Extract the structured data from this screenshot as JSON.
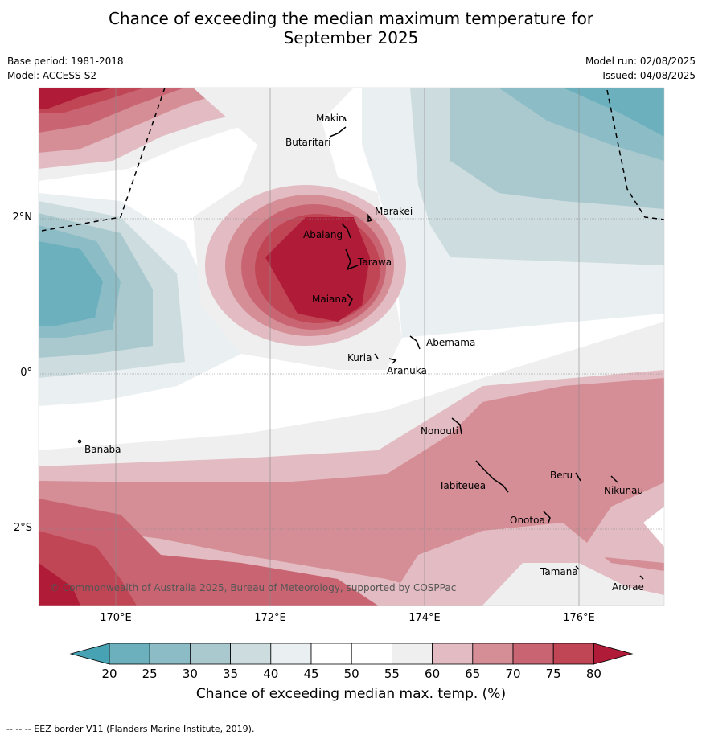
{
  "title_line1": "Chance of exceeding the median maximum temperature for",
  "title_line2": "September 2025",
  "base_period": "Base period: 1981-2018",
  "model": "Model: ACCESS-S2",
  "model_run": "Model run: 02/08/2025",
  "issued": "Issued: 04/08/2025",
  "copyright": "© Commonwealth of Australia 2025, Bureau of Meteorology, supported by COSPPac",
  "footer": "--  --  -- EEZ border V11 (Flanders Marine Institute, 2019).",
  "axes": {
    "lat_ticks": [
      "2°N",
      "0°",
      "2°S"
    ],
    "lon_ticks": [
      "170°E",
      "172°E",
      "174°E",
      "176°E"
    ]
  },
  "colorbar": {
    "label": "Chance of exceeding median max. temp. (%)",
    "ticks": [
      "20",
      "25",
      "30",
      "35",
      "40",
      "45",
      "50",
      "55",
      "60",
      "65",
      "70",
      "75",
      "80"
    ],
    "colors": [
      "#47a3b3",
      "#6bb0bc",
      "#8cbcc6",
      "#a9c9ce",
      "#cddcdf",
      "#eaf0f2",
      "#ffffff",
      "#ffffff",
      "#efefef",
      "#e2bcc2",
      "#d58d96",
      "#c96572",
      "#c04655",
      "#b01c37"
    ]
  },
  "places": [
    {
      "name": "Makin"
    },
    {
      "name": "Butaritari"
    },
    {
      "name": "Marakei"
    },
    {
      "name": "Abaiang"
    },
    {
      "name": "Tarawa"
    },
    {
      "name": "Maiana"
    },
    {
      "name": "Abemama"
    },
    {
      "name": "Kuria"
    },
    {
      "name": "Aranuka"
    },
    {
      "name": "Nonouti"
    },
    {
      "name": "Banaba"
    },
    {
      "name": "Beru"
    },
    {
      "name": "Tabiteuea"
    },
    {
      "name": "Nikunau"
    },
    {
      "name": "Onotoa"
    },
    {
      "name": "Tamana"
    },
    {
      "name": "Arorae"
    }
  ]
}
